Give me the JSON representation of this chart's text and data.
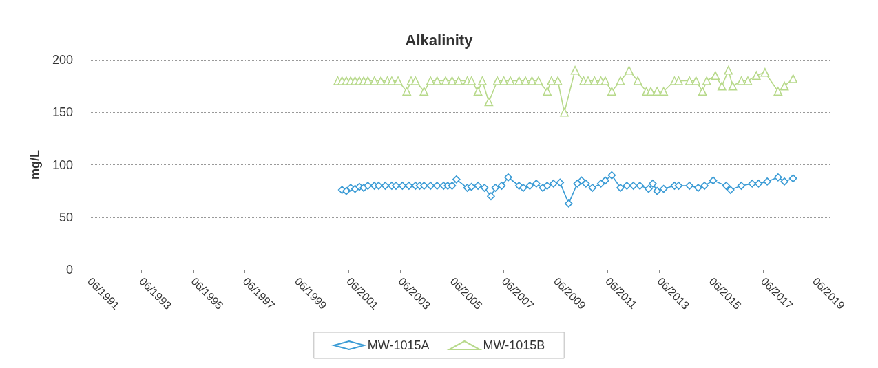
{
  "chart_data": {
    "type": "line",
    "title": "Alkalinity",
    "ylabel": "mg/L",
    "xlim": [
      "1991-06",
      "2020-01"
    ],
    "xticks": [
      {
        "value": "1991-06",
        "label": "06/1991"
      },
      {
        "value": "1993-06",
        "label": "06/1993"
      },
      {
        "value": "1995-06",
        "label": "06/1995"
      },
      {
        "value": "1997-06",
        "label": "06/1997"
      },
      {
        "value": "1999-06",
        "label": "06/1999"
      },
      {
        "value": "2001-06",
        "label": "06/2001"
      },
      {
        "value": "2003-06",
        "label": "06/2003"
      },
      {
        "value": "2005-06",
        "label": "06/2005"
      },
      {
        "value": "2007-06",
        "label": "06/2007"
      },
      {
        "value": "2009-06",
        "label": "06/2009"
      },
      {
        "value": "2011-06",
        "label": "06/2011"
      },
      {
        "value": "2013-06",
        "label": "06/2013"
      },
      {
        "value": "2015-06",
        "label": "06/2015"
      },
      {
        "value": "2017-06",
        "label": "06/2017"
      },
      {
        "value": "2019-06",
        "label": "06/2019"
      }
    ],
    "ylim": [
      0,
      200
    ],
    "yticks": [
      0,
      50,
      100,
      150,
      200
    ],
    "grid": "y",
    "legend": "bottom",
    "line_style": "solid",
    "series": [
      {
        "name": "MW-1015A",
        "color": "#3a9bd5",
        "marker": "diamond",
        "x": [
          "2001-03",
          "2001-05",
          "2001-07",
          "2001-09",
          "2001-11",
          "2002-01",
          "2002-03",
          "2002-06",
          "2002-08",
          "2002-11",
          "2003-02",
          "2003-04",
          "2003-07",
          "2003-10",
          "2004-01",
          "2004-03",
          "2004-05",
          "2004-08",
          "2004-11",
          "2005-02",
          "2005-04",
          "2005-06",
          "2005-08",
          "2006-01",
          "2006-03",
          "2006-06",
          "2006-09",
          "2006-12",
          "2007-02",
          "2007-05",
          "2007-08",
          "2008-01",
          "2008-03",
          "2008-06",
          "2008-09",
          "2008-12",
          "2009-02",
          "2009-05",
          "2009-08",
          "2009-12",
          "2010-04",
          "2010-06",
          "2010-08",
          "2010-11",
          "2011-03",
          "2011-05",
          "2011-08",
          "2011-12",
          "2012-03",
          "2012-06",
          "2012-09",
          "2013-01",
          "2013-03",
          "2013-05",
          "2013-08",
          "2014-01",
          "2014-03",
          "2014-08",
          "2014-12",
          "2015-03",
          "2015-07",
          "2016-01",
          "2016-03",
          "2016-08",
          "2017-01",
          "2017-04",
          "2017-08",
          "2018-01",
          "2018-04",
          "2018-08"
        ],
        "values": [
          76,
          75,
          78,
          77,
          79,
          78,
          80,
          80,
          80,
          80,
          80,
          80,
          80,
          80,
          80,
          80,
          80,
          80,
          80,
          80,
          80,
          80,
          86,
          78,
          79,
          80,
          78,
          70,
          78,
          80,
          88,
          80,
          78,
          80,
          82,
          78,
          80,
          82,
          83,
          63,
          82,
          85,
          82,
          78,
          82,
          85,
          90,
          78,
          80,
          80,
          80,
          77,
          82,
          75,
          77,
          80,
          80,
          80,
          78,
          80,
          85,
          80,
          76,
          80,
          82,
          82,
          84,
          88,
          84,
          87
        ]
      },
      {
        "name": "MW-1015B",
        "color": "#b7d98a",
        "marker": "triangle",
        "x": [
          "2001-01",
          "2001-03",
          "2001-05",
          "2001-07",
          "2001-09",
          "2001-11",
          "2002-01",
          "2002-03",
          "2002-06",
          "2002-09",
          "2002-12",
          "2003-02",
          "2003-05",
          "2003-09",
          "2003-11",
          "2004-01",
          "2004-05",
          "2004-08",
          "2004-11",
          "2005-03",
          "2005-06",
          "2005-09",
          "2006-01",
          "2006-03",
          "2006-06",
          "2006-08",
          "2006-11",
          "2007-03",
          "2007-06",
          "2007-09",
          "2008-01",
          "2008-04",
          "2008-07",
          "2008-10",
          "2009-02",
          "2009-04",
          "2009-07",
          "2009-10",
          "2010-03",
          "2010-07",
          "2010-09",
          "2010-12",
          "2011-03",
          "2011-05",
          "2011-08",
          "2011-12",
          "2012-04",
          "2012-08",
          "2012-12",
          "2013-02",
          "2013-05",
          "2013-08",
          "2014-01",
          "2014-03",
          "2014-08",
          "2014-11",
          "2015-02",
          "2015-04",
          "2015-08",
          "2015-11",
          "2016-02",
          "2016-04",
          "2016-08",
          "2016-11",
          "2017-03",
          "2017-07",
          "2018-01",
          "2018-04",
          "2018-08"
        ],
        "values": [
          180,
          180,
          180,
          180,
          180,
          180,
          180,
          180,
          180,
          180,
          180,
          180,
          180,
          170,
          180,
          180,
          170,
          180,
          180,
          180,
          180,
          180,
          180,
          180,
          170,
          180,
          160,
          180,
          180,
          180,
          180,
          180,
          180,
          180,
          170,
          180,
          180,
          150,
          190,
          180,
          180,
          180,
          180,
          180,
          170,
          180,
          190,
          180,
          170,
          170,
          170,
          170,
          180,
          180,
          180,
          180,
          170,
          180,
          185,
          175,
          190,
          175,
          180,
          180,
          185,
          188,
          170,
          175,
          182
        ]
      }
    ]
  }
}
